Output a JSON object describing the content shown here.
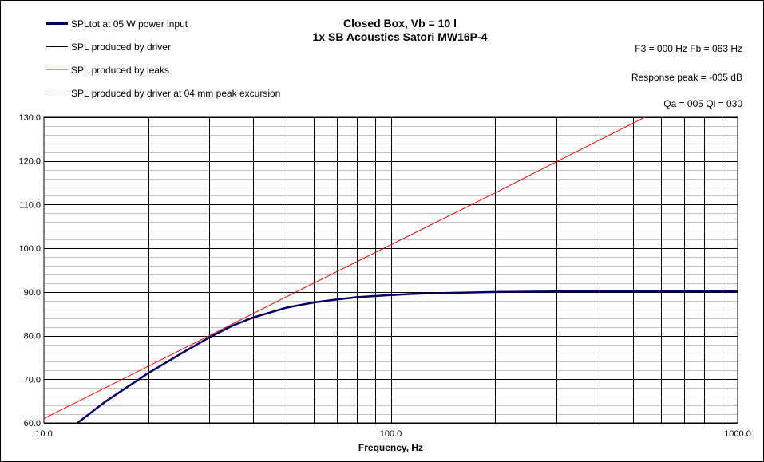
{
  "chart_data": {
    "type": "line",
    "title": "Closed Box, Vb = 10 l",
    "subtitle": "1x SB Acoustics Satori MW16P-4",
    "xlabel": "Frequency, Hz",
    "ylabel": "",
    "x_scale": "log",
    "xlim": [
      10,
      1000
    ],
    "ylim": [
      60,
      130
    ],
    "x_ticks": [
      "10.0",
      "100.0",
      "1000.0"
    ],
    "y_ticks": [
      "60.0",
      "70.0",
      "80.0",
      "90.0",
      "100.0",
      "110.0",
      "120.0",
      "130.0"
    ],
    "grid": true,
    "legend_position": "top-left",
    "annotations": {
      "f3_fb": "F3 = 000 Hz  Fb = 063 Hz",
      "response_peak": "Response peak = -005 dB",
      "qa_ql": "Qa = 005   Ql = 030"
    },
    "series": [
      {
        "name": "SPLtot at 05 W power input",
        "color": "#000066",
        "x": [
          12.5,
          15,
          20,
          25,
          30,
          35,
          40,
          50,
          60,
          70,
          80,
          100,
          120,
          150,
          200,
          300,
          500,
          1000
        ],
        "y": [
          60.0,
          64.8,
          71.4,
          76.0,
          79.6,
          82.3,
          84.1,
          86.4,
          87.6,
          88.3,
          88.8,
          89.3,
          89.6,
          89.8,
          90.0,
          90.1,
          90.1,
          90.1
        ]
      },
      {
        "name": "SPL produced by driver",
        "color": "#000000",
        "x": [
          12.5,
          15,
          20,
          25,
          30,
          35,
          40,
          50,
          60,
          70,
          80,
          100,
          120,
          150,
          200,
          300,
          500,
          1000
        ],
        "y": [
          60.0,
          64.8,
          71.4,
          76.0,
          79.6,
          82.3,
          84.1,
          86.4,
          87.6,
          88.3,
          88.8,
          89.3,
          89.6,
          89.8,
          90.0,
          90.1,
          90.1,
          90.1
        ]
      },
      {
        "name": "SPL produced by leaks",
        "color": "#33ccff",
        "x": [],
        "y": []
      },
      {
        "name": "SPL produced by driver at 04 mm peak excursion",
        "color": "#ff0000",
        "x": [
          10,
          20,
          30,
          50,
          100,
          200,
          300,
          540
        ],
        "y": [
          61.0,
          73.0,
          80.0,
          88.9,
          100.8,
          112.7,
          119.8,
          130.0
        ]
      }
    ]
  }
}
